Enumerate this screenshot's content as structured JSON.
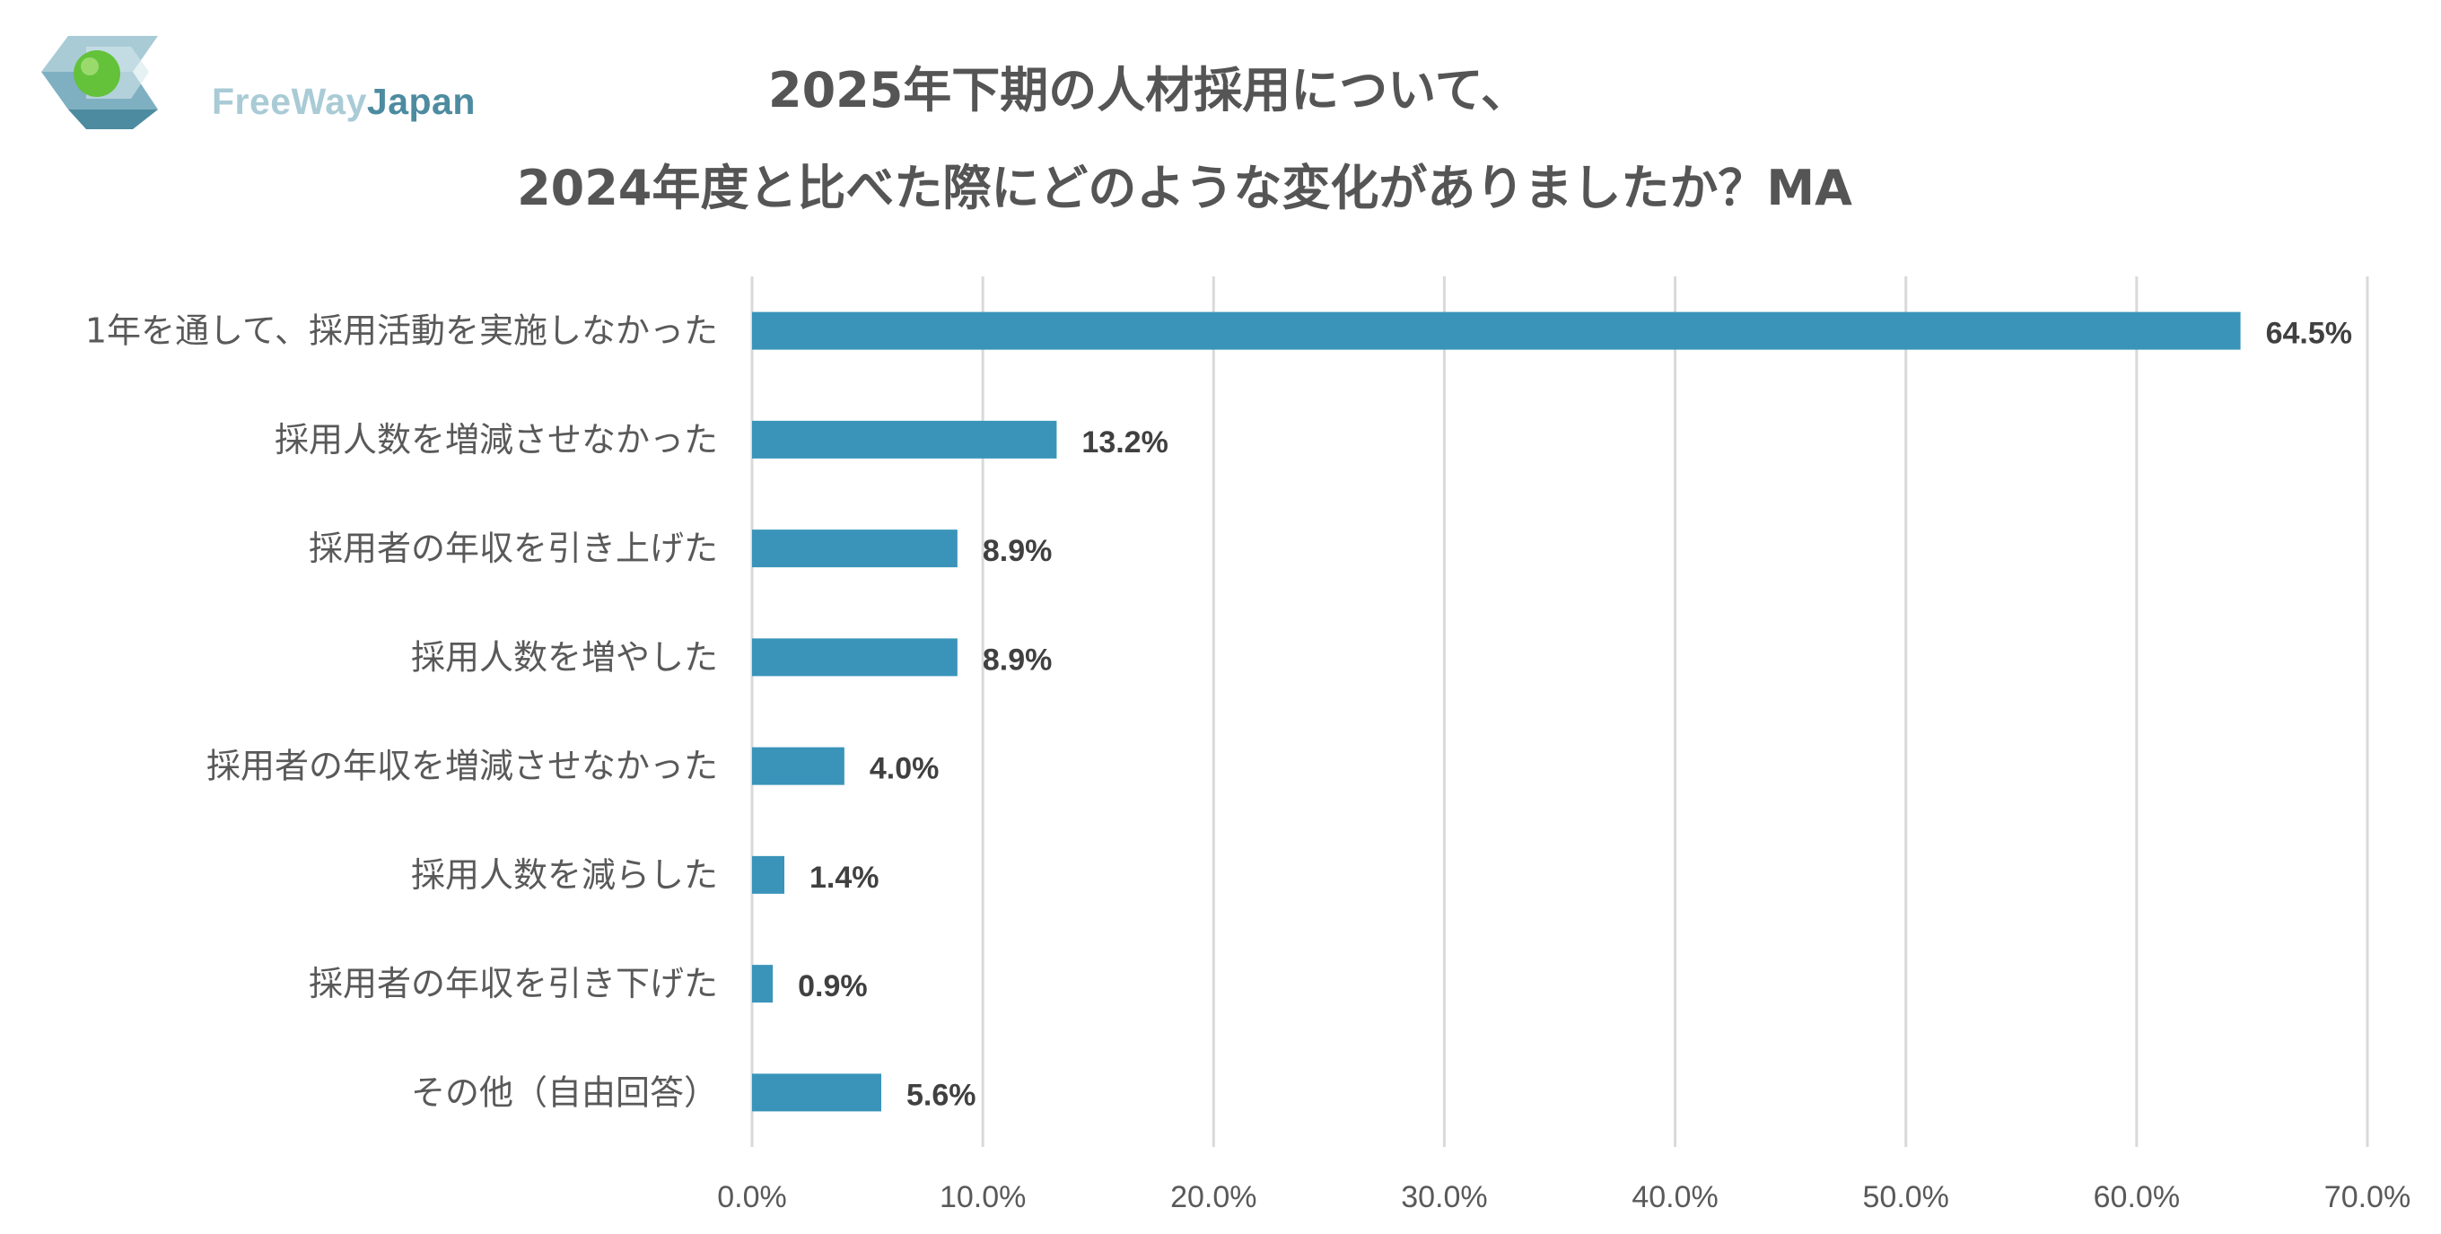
{
  "logo": {
    "text_light": "FreeWay",
    "text_dark": "Japan",
    "colors": {
      "light": "#a9cbd6",
      "dark": "#4d8ba0",
      "sphere": "#63c23a"
    }
  },
  "chart_data": {
    "type": "bar",
    "orientation": "horizontal",
    "title": "2025年下期の人材採用について、",
    "subtitle": "2024年度と比べた際にどのような変化がありましたか？MA",
    "categories": [
      "1年を通して、採用活動を実施しなかった",
      "採用人数を増減させなかった",
      "採用者の年収を引き上げた",
      "採用人数を増やした",
      "採用者の年収を増減させなかった",
      "採用人数を減らした",
      "採用者の年収を引き下げた",
      "その他（自由回答）"
    ],
    "values": [
      64.5,
      13.2,
      8.9,
      8.9,
      4.0,
      1.4,
      0.9,
      5.6
    ],
    "data_labels": [
      "64.5%",
      "13.2%",
      "8.9%",
      "8.9%",
      "4.0%",
      "1.4%",
      "0.9%",
      "5.6%"
    ],
    "xlim": [
      0,
      70
    ],
    "x_ticks": [
      "0.0%",
      "10.0%",
      "20.0%",
      "30.0%",
      "40.0%",
      "50.0%",
      "60.0%",
      "70.0%"
    ],
    "grid": true,
    "bar_color": "#3a94ba",
    "gridline_color": "#d9d9d9",
    "text_color": "#595959"
  }
}
